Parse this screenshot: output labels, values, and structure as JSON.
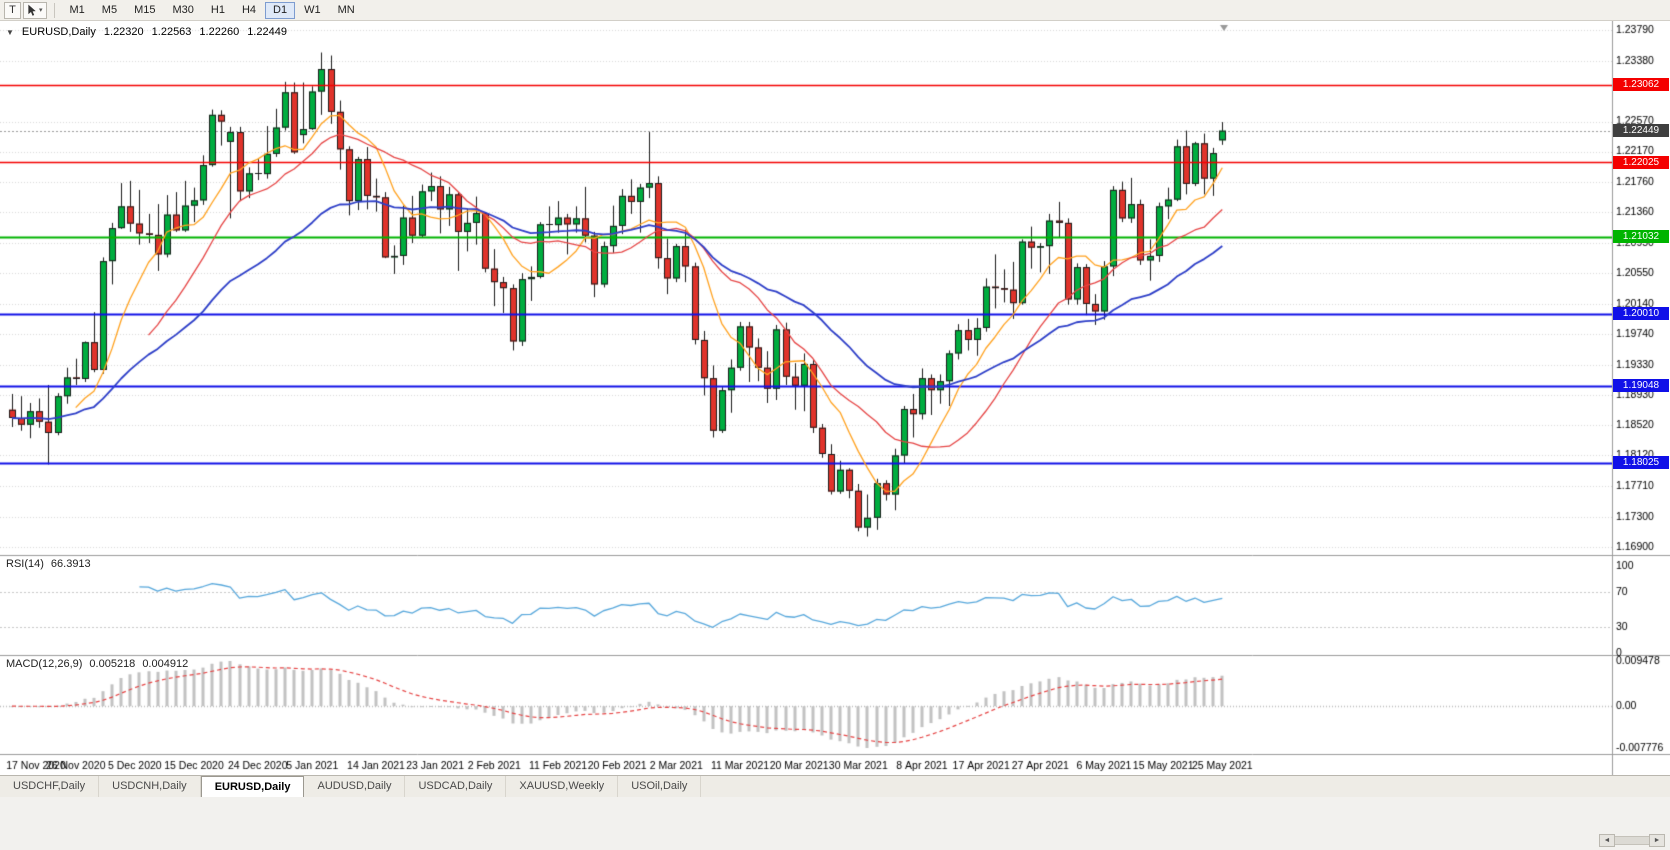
{
  "toolbar": {
    "tool_label": "T",
    "timeframes": [
      "M1",
      "M5",
      "M15",
      "M30",
      "H1",
      "H4",
      "D1",
      "W1",
      "MN"
    ],
    "active_timeframe": "D1"
  },
  "header": {
    "collapse_icon": "▼",
    "symbol": "EURUSD,Daily",
    "open": "1.22320",
    "high": "1.22563",
    "low": "1.22260",
    "close": "1.22449"
  },
  "panels": {
    "rsi": {
      "title": "RSI(14)",
      "value": "66.3913",
      "ticks": [
        "100",
        "70",
        "30",
        "0"
      ],
      "tick_values": [
        100,
        70,
        30,
        0
      ],
      "levels": [
        70,
        30
      ]
    },
    "macd": {
      "title": "MACD(12,26,9)",
      "value_main": "0.005218",
      "value_signal": "0.004912",
      "tick_top": "0.009478",
      "tick_zero": "0.00",
      "tick_bottom": "-0.007776"
    }
  },
  "price_axis": {
    "ticks": [
      "1.23790",
      "1.23380",
      "1.22570",
      "1.22170",
      "1.21760",
      "1.21360",
      "1.20950",
      "1.20550",
      "1.20140",
      "1.19740",
      "1.19330",
      "1.18930",
      "1.18520",
      "1.18120",
      "1.17710",
      "1.17300",
      "1.16900"
    ],
    "current_price": {
      "label": "1.22449",
      "value": 1.22449
    }
  },
  "chart_data": {
    "type": "candlestick",
    "symbol": "EURUSD",
    "timeframe": "Daily",
    "price_range": [
      1.16834,
      1.23857
    ],
    "x_labels": [
      "17 Nov 2020",
      "26 Nov 2020",
      "5 Dec 2020",
      "15 Dec 2020",
      "24 Dec 2020",
      "5 Jan 2021",
      "14 Jan 2021",
      "23 Jan 2021",
      "2 Feb 2021",
      "11 Feb 2021",
      "20 Feb 2021",
      "2 Mar 2021",
      "11 Mar 2021",
      "20 Mar 2021",
      "30 Mar 2021",
      "8 Apr 2021",
      "17 Apr 2021",
      "27 Apr 2021",
      "6 May 2021",
      "15 May 2021",
      "25 May 2021"
    ],
    "x_label_bar_index": [
      0,
      7,
      13.5,
      20,
      27,
      33,
      40,
      46.5,
      53,
      60,
      66.5,
      73,
      80,
      86.5,
      93,
      100,
      106.5,
      113,
      120,
      126.5,
      133
    ],
    "ohlc": [
      [
        1.1873,
        1.1894,
        1.185,
        1.1862
      ],
      [
        1.1862,
        1.1891,
        1.1845,
        1.1853
      ],
      [
        1.1853,
        1.1882,
        1.1835,
        1.1871
      ],
      [
        1.1871,
        1.1888,
        1.1849,
        1.1857
      ],
      [
        1.1857,
        1.1906,
        1.18,
        1.1842
      ],
      [
        1.1842,
        1.1895,
        1.1839,
        1.1891
      ],
      [
        1.1891,
        1.1929,
        1.1881,
        1.1916
      ],
      [
        1.1916,
        1.1941,
        1.1906,
        1.1914
      ],
      [
        1.1914,
        1.1964,
        1.191,
        1.1963
      ],
      [
        1.1963,
        1.2003,
        1.1923,
        1.1926
      ],
      [
        1.1926,
        1.2076,
        1.1921,
        1.2071
      ],
      [
        1.2071,
        1.2122,
        1.204,
        1.2115
      ],
      [
        1.2115,
        1.2175,
        1.2114,
        1.2144
      ],
      [
        1.2144,
        1.2178,
        1.211,
        1.2121
      ],
      [
        1.2121,
        1.2166,
        1.2093,
        1.2108
      ],
      [
        1.2108,
        1.2134,
        1.2095,
        1.2106
      ],
      [
        1.2106,
        1.2147,
        1.2058,
        1.208
      ],
      [
        1.208,
        1.2159,
        1.2076,
        1.2133
      ],
      [
        1.2133,
        1.2163,
        1.211,
        1.2112
      ],
      [
        1.2112,
        1.2178,
        1.211,
        1.2145
      ],
      [
        1.2145,
        1.2169,
        1.2123,
        1.2152
      ],
      [
        1.2152,
        1.2212,
        1.2146,
        1.2199
      ],
      [
        1.2199,
        1.2273,
        1.2197,
        1.2266
      ],
      [
        1.2266,
        1.2272,
        1.2225,
        1.2257
      ],
      [
        1.223,
        1.225,
        1.2128,
        1.2243
      ],
      [
        1.2243,
        1.225,
        1.2151,
        1.2164
      ],
      [
        1.2164,
        1.2196,
        1.2155,
        1.2188
      ],
      [
        1.2188,
        1.2208,
        1.2179,
        1.2187
      ],
      [
        1.2187,
        1.2251,
        1.2181,
        1.2214
      ],
      [
        1.2214,
        1.2274,
        1.221,
        1.2249
      ],
      [
        1.2249,
        1.231,
        1.2245,
        1.2296
      ],
      [
        1.2296,
        1.2309,
        1.2214,
        1.2216
      ],
      [
        1.2239,
        1.2309,
        1.2228,
        1.2247
      ],
      [
        1.2247,
        1.2304,
        1.2246,
        1.2297
      ],
      [
        1.2297,
        1.2349,
        1.2266,
        1.2327
      ],
      [
        1.2327,
        1.2345,
        1.2254,
        1.227
      ],
      [
        1.227,
        1.2285,
        1.2193,
        1.222
      ],
      [
        1.222,
        1.2224,
        1.2132,
        1.2151
      ],
      [
        1.2151,
        1.221,
        1.2139,
        1.2207
      ],
      [
        1.2207,
        1.2223,
        1.214,
        1.2158
      ],
      [
        1.2158,
        1.2181,
        1.2137,
        1.2156
      ],
      [
        1.2156,
        1.2163,
        1.2075,
        1.2076
      ],
      [
        1.2076,
        1.2092,
        1.2054,
        1.2078
      ],
      [
        1.2078,
        1.2145,
        1.2066,
        1.2129
      ],
      [
        1.2129,
        1.2158,
        1.2095,
        1.2105
      ],
      [
        1.2105,
        1.2173,
        1.2103,
        1.2164
      ],
      [
        1.2164,
        1.2189,
        1.2151,
        1.2171
      ],
      [
        1.2171,
        1.2184,
        1.2108,
        1.214
      ],
      [
        1.214,
        1.217,
        1.2118,
        1.216
      ],
      [
        1.216,
        1.2163,
        1.2058,
        1.211
      ],
      [
        1.211,
        1.2141,
        1.2084,
        1.2122
      ],
      [
        1.2122,
        1.2157,
        1.2093,
        1.2135
      ],
      [
        1.2135,
        1.2136,
        1.2056,
        1.2061
      ],
      [
        1.2061,
        1.2087,
        1.2011,
        1.2043
      ],
      [
        1.2043,
        1.205,
        1.2002,
        1.2035
      ],
      [
        1.2035,
        1.204,
        1.1952,
        1.1964
      ],
      [
        1.1964,
        1.2055,
        1.1958,
        1.2047
      ],
      [
        1.2047,
        1.2064,
        1.2018,
        1.205
      ],
      [
        1.205,
        1.2123,
        1.2048,
        1.212
      ],
      [
        1.212,
        1.2144,
        1.2103,
        1.2119
      ],
      [
        1.2119,
        1.2151,
        1.2109,
        1.2129
      ],
      [
        1.2129,
        1.2134,
        1.208,
        1.212
      ],
      [
        1.212,
        1.2144,
        1.2109,
        1.2128
      ],
      [
        1.2128,
        1.217,
        1.2096,
        1.2105
      ],
      [
        1.2105,
        1.211,
        1.2023,
        1.204
      ],
      [
        1.204,
        1.2097,
        1.2036,
        1.2091
      ],
      [
        1.2091,
        1.2145,
        1.2082,
        1.2118
      ],
      [
        1.2118,
        1.2167,
        1.2107,
        1.2158
      ],
      [
        1.2158,
        1.218,
        1.2134,
        1.215
      ],
      [
        1.215,
        1.2174,
        1.2109,
        1.2169
      ],
      [
        1.2169,
        1.2243,
        1.2155,
        1.2175
      ],
      [
        1.2175,
        1.2184,
        1.2061,
        1.2075
      ],
      [
        1.2075,
        1.2101,
        1.2027,
        1.2048
      ],
      [
        1.2048,
        1.2094,
        1.2043,
        1.2091
      ],
      [
        1.2091,
        1.2113,
        1.2043,
        1.2064
      ],
      [
        1.2064,
        1.2069,
        1.196,
        1.1966
      ],
      [
        1.1966,
        1.1978,
        1.1892,
        1.1915
      ],
      [
        1.1915,
        1.1932,
        1.1836,
        1.1845
      ],
      [
        1.1845,
        1.1903,
        1.1842,
        1.1899
      ],
      [
        1.1899,
        1.194,
        1.1869,
        1.1929
      ],
      [
        1.1929,
        1.199,
        1.1925,
        1.1984
      ],
      [
        1.1984,
        1.199,
        1.191,
        1.1956
      ],
      [
        1.1956,
        1.1968,
        1.1911,
        1.1929
      ],
      [
        1.1929,
        1.1951,
        1.1882,
        1.1901
      ],
      [
        1.1901,
        1.1986,
        1.1886,
        1.198
      ],
      [
        1.198,
        1.1989,
        1.1906,
        1.1917
      ],
      [
        1.1917,
        1.1935,
        1.1873,
        1.1905
      ],
      [
        1.1905,
        1.1948,
        1.1871,
        1.1934
      ],
      [
        1.1934,
        1.1939,
        1.1842,
        1.1849
      ],
      [
        1.1849,
        1.1854,
        1.1809,
        1.1814
      ],
      [
        1.1814,
        1.1827,
        1.176,
        1.1764
      ],
      [
        1.1764,
        1.1805,
        1.1761,
        1.1793
      ],
      [
        1.1793,
        1.1795,
        1.1755,
        1.1765
      ],
      [
        1.1765,
        1.1774,
        1.1711,
        1.1716
      ],
      [
        1.1716,
        1.176,
        1.1704,
        1.1729
      ],
      [
        1.1729,
        1.1781,
        1.1713,
        1.1775
      ],
      [
        1.1775,
        1.1779,
        1.1752,
        1.176
      ],
      [
        1.176,
        1.1821,
        1.1739,
        1.1812
      ],
      [
        1.1812,
        1.1878,
        1.1802,
        1.1874
      ],
      [
        1.1874,
        1.1894,
        1.1836,
        1.1867
      ],
      [
        1.1867,
        1.1928,
        1.186,
        1.1915
      ],
      [
        1.1915,
        1.192,
        1.1866,
        1.1899
      ],
      [
        1.1899,
        1.192,
        1.1881,
        1.1911
      ],
      [
        1.1911,
        1.1952,
        1.1878,
        1.1948
      ],
      [
        1.1948,
        1.1987,
        1.194,
        1.1979
      ],
      [
        1.1979,
        1.1994,
        1.1952,
        1.1966
      ],
      [
        1.1966,
        1.1995,
        1.1945,
        1.1982
      ],
      [
        1.1982,
        1.2048,
        1.1977,
        1.2037
      ],
      [
        1.2037,
        1.208,
        1.2008,
        1.2035
      ],
      [
        1.2035,
        1.206,
        1.2016,
        1.2033
      ],
      [
        1.2033,
        1.207,
        1.1994,
        1.2015
      ],
      [
        1.2015,
        1.21,
        1.2013,
        1.2097
      ],
      [
        1.2097,
        1.2117,
        1.2061,
        1.2089
      ],
      [
        1.2089,
        1.2095,
        1.2056,
        1.2091
      ],
      [
        1.2091,
        1.2134,
        1.2054,
        1.2125
      ],
      [
        1.2125,
        1.215,
        1.2103,
        1.2122
      ],
      [
        1.2122,
        1.2128,
        1.2013,
        1.202
      ],
      [
        1.202,
        1.2068,
        1.2013,
        1.2063
      ],
      [
        1.2063,
        1.2067,
        1.1999,
        1.2014
      ],
      [
        1.2014,
        1.2027,
        1.1986,
        1.2004
      ],
      [
        1.2004,
        1.2071,
        1.1993,
        1.2064
      ],
      [
        1.2064,
        1.2171,
        1.2051,
        1.2166
      ],
      [
        1.2166,
        1.2177,
        1.2123,
        1.2128
      ],
      [
        1.2128,
        1.2182,
        1.2122,
        1.2147
      ],
      [
        1.2147,
        1.2153,
        1.2066,
        1.2072
      ],
      [
        1.2072,
        1.21,
        1.2045,
        1.2078
      ],
      [
        1.2078,
        1.2149,
        1.207,
        1.2144
      ],
      [
        1.2144,
        1.2169,
        1.2127,
        1.2153
      ],
      [
        1.2153,
        1.2233,
        1.2151,
        1.2224
      ],
      [
        1.2224,
        1.2245,
        1.216,
        1.2174
      ],
      [
        1.2174,
        1.223,
        1.2171,
        1.2228
      ],
      [
        1.2228,
        1.2241,
        1.216,
        1.2181
      ],
      [
        1.2181,
        1.2222,
        1.2158,
        1.2215
      ],
      [
        1.2232,
        1.22563,
        1.2226,
        1.22449
      ]
    ],
    "moving_averages": [
      {
        "period": 8,
        "method": "sma",
        "color": "#ffa21f",
        "width": 1.3
      },
      {
        "period": 16,
        "method": "sma",
        "color": "#e64545",
        "width": 1.3
      },
      {
        "period": 34,
        "method": "ema",
        "color": "#2e3fc8",
        "width": 1.8
      }
    ],
    "horizontal_lines": [
      {
        "value": 1.23062,
        "label": "1.23062",
        "color": "#f40000",
        "width": 1.4
      },
      {
        "value": 1.22025,
        "label": "1.22025",
        "color": "#f40000",
        "width": 1.4
      },
      {
        "value": 1.21032,
        "label": "1.21032",
        "color": "#00b400",
        "width": 2
      },
      {
        "value": 1.2001,
        "label": "1.20010",
        "color": "#1010e8",
        "width": 2
      },
      {
        "value": 1.19048,
        "label": "1.19048",
        "color": "#1010e8",
        "width": 2
      },
      {
        "value": 1.18025,
        "label": "1.18025",
        "color": "#1010e8",
        "width": 2
      }
    ],
    "rsi": {
      "period": 14
    },
    "macd": {
      "fast": 12,
      "slow": 26,
      "signal": 9
    }
  },
  "colors": {
    "bull": "#00ad3f",
    "bear": "#e0332b",
    "candle_border": "#1a1a1a",
    "grid": "#d8d8d8",
    "separator": "#9a9a9a",
    "axis_text": "#000000",
    "price_line": "#9a9a9a",
    "current_badge_bg": "#3f3f3f",
    "rsi_line": "#58a8dc",
    "rsi_level": "#c8c8c8",
    "macd_hist": "#c2c2c2",
    "macd_signal": "#e64545",
    "shift_marker": "#999999"
  },
  "tabs": {
    "items": [
      "USDCHF,Daily",
      "USDCNH,Daily",
      "EURUSD,Daily",
      "AUDUSD,Daily",
      "USDCAD,Daily",
      "XAUUSD,Weekly",
      "USOil,Daily"
    ],
    "active_index": 2
  },
  "scrollbar": {
    "left_arrow": "◄",
    "right_arrow": "►"
  }
}
